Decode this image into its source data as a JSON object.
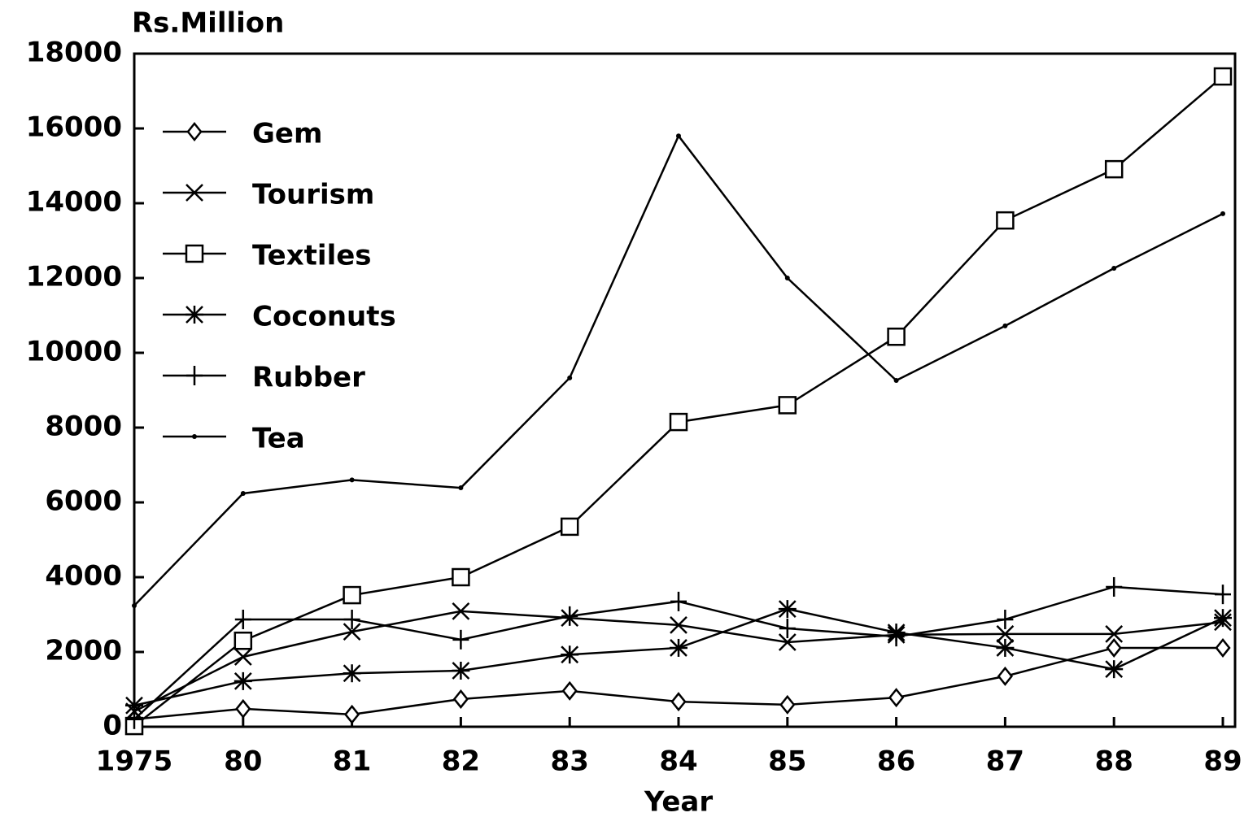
{
  "chart_data": {
    "type": "line",
    "ylabel": "Rs.Million",
    "xlabel": "Year",
    "categories": [
      "1975",
      "80",
      "81",
      "82",
      "83",
      "84",
      "85",
      "86",
      "87",
      "88",
      "89"
    ],
    "ylim": [
      0,
      18000
    ],
    "yticks": [
      0,
      2000,
      4000,
      6000,
      8000,
      10000,
      12000,
      14000,
      16000,
      18000
    ],
    "legend": "upper left",
    "series": [
      {
        "name": "Gem",
        "marker": "diamond",
        "color": "#000000",
        "values": [
          200,
          480,
          330,
          740,
          960,
          670,
          590,
          780,
          1350,
          2110,
          2110
        ]
      },
      {
        "name": "Tourism",
        "marker": "x",
        "color": "#000000",
        "values": [
          410,
          1870,
          2540,
          3090,
          2910,
          2720,
          2260,
          2460,
          2480,
          2480,
          2800
        ]
      },
      {
        "name": "Textiles",
        "marker": "square",
        "color": "#000000",
        "values": [
          20,
          2300,
          3520,
          4000,
          5350,
          8150,
          8600,
          10430,
          13540,
          14910,
          17390
        ]
      },
      {
        "name": "Coconuts",
        "marker": "asterisk",
        "color": "#000000",
        "values": [
          570,
          1220,
          1430,
          1500,
          1930,
          2110,
          3150,
          2520,
          2110,
          1540,
          2910
        ]
      },
      {
        "name": "Rubber",
        "marker": "plus",
        "color": "#000000",
        "values": [
          200,
          2870,
          2870,
          2330,
          2960,
          3350,
          2630,
          2410,
          2870,
          3740,
          3540
        ]
      },
      {
        "name": "Tea",
        "marker": "dot",
        "color": "#000000",
        "values": [
          3240,
          6240,
          6600,
          6390,
          9330,
          15800,
          12000,
          9260,
          10720,
          12260,
          13720
        ]
      }
    ]
  }
}
